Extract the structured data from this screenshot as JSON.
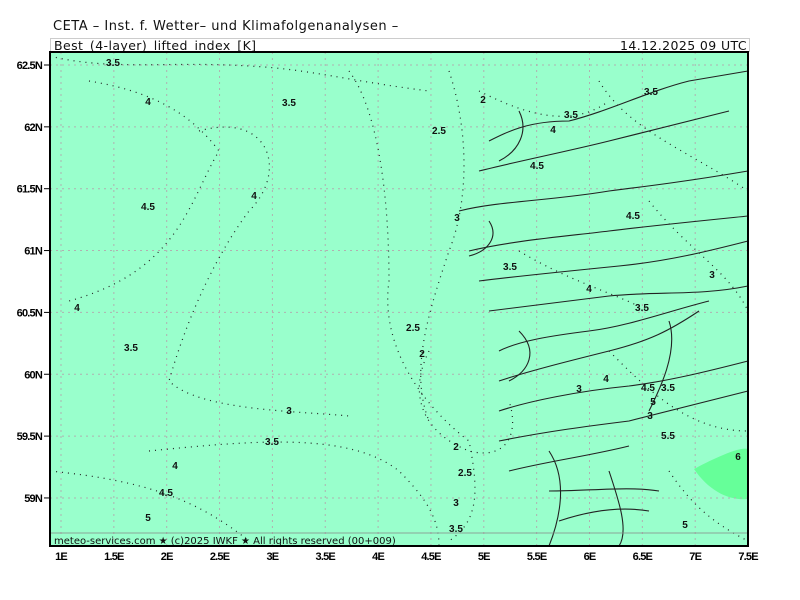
{
  "header": {
    "title": "CETA – Inst. f. Wetter– und Klimafolgenanalysen –",
    "parameter": "Best_(4-layer)_lifted_index_[K]",
    "valid_time": "14.12.2025  09  UTC"
  },
  "map": {
    "background_color": "#99ffcc",
    "highlight_color": "#66ff99",
    "coast_color": "#222222",
    "grid_color": "#b0b0b0",
    "lat_ticks": [
      "62.5N",
      "62N",
      "61.5N",
      "61N",
      "60.5N",
      "60N",
      "59.5N",
      "59N"
    ],
    "lon_ticks": [
      "1E",
      "1.5E",
      "2E",
      "2.5E",
      "3E",
      "3.5E",
      "4E",
      "4.5E",
      "5E",
      "5.5E",
      "6E",
      "6.5E",
      "7E",
      "7.5E"
    ],
    "contour_labels": [
      "3.5",
      "4",
      "3.5",
      "2",
      "2.5",
      "3.5",
      "4",
      "4.5",
      "3.5",
      "4.5",
      "4",
      "3",
      "4.5",
      "3.5",
      "4",
      "3",
      "4",
      "3.5",
      "2.5",
      "2",
      "3.5",
      "3",
      "3",
      "4",
      "4.5",
      "5",
      "3.5",
      "3",
      "3.5",
      "5.5",
      "4",
      "2",
      "2.5",
      "4.5",
      "3",
      "5",
      "3.5",
      "6",
      "5"
    ],
    "credit": "meteo-services.com  ★ (c)2025  IWKF  ★ All  rights  reserved  (00+009)"
  }
}
